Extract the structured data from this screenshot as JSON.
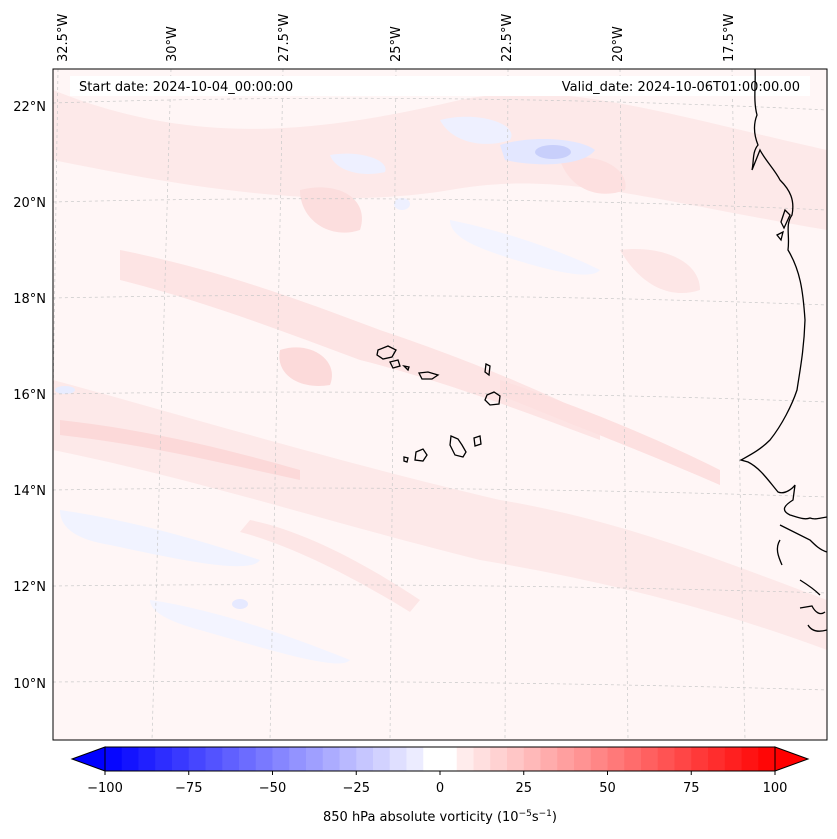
{
  "header": {
    "start_date": "Start date: 2024-10-04_00:00:00",
    "valid_date": "Valid_date: 2024-10-06T01:00:00.00"
  },
  "map": {
    "lon_labels": [
      "32.5°W",
      "30°W",
      "27.5°W",
      "25°W",
      "22.5°W",
      "20°W",
      "17.5°W"
    ],
    "lat_labels": [
      "22°N",
      "20°N",
      "18°N",
      "16°N",
      "14°N",
      "12°N",
      "10°N"
    ],
    "field_colors": {
      "light_pink": "#fde6e6",
      "pink": "#fbd5d5",
      "light_blue": "#eef0ff",
      "blue": "#c8cffb",
      "coast": "#000000",
      "grid": "#bdbdbd"
    }
  },
  "colorbar": {
    "ticks": [
      "−100",
      "−75",
      "−50",
      "−25",
      "0",
      "25",
      "50",
      "75",
      "100"
    ],
    "title_main": "850 hPa absolute vorticity (10",
    "title_exp1": "−5",
    "title_mid": "s",
    "title_exp2": "−1",
    "title_end": ")",
    "min": -100,
    "max": 100,
    "levels": 41,
    "negative_color": "#0000ff",
    "positive_color": "#ff0000"
  }
}
